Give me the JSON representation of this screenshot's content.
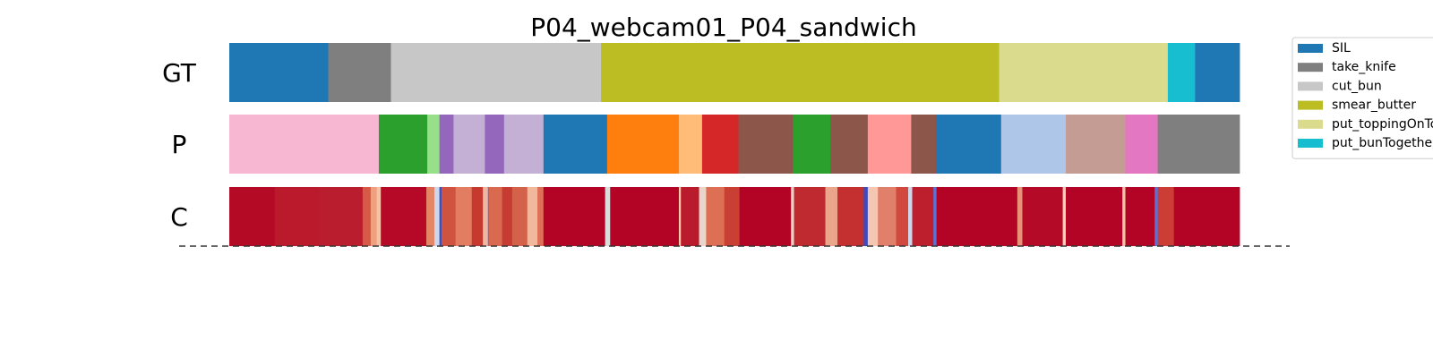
{
  "chart_data": {
    "type": "segmentation_timeline",
    "title": "P04_webcam01_P04_sandwich",
    "rows": [
      {
        "label": "GT",
        "segments": [
          {
            "start": 0.0,
            "end": 0.098,
            "color": "#1f77b4"
          },
          {
            "start": 0.098,
            "end": 0.16,
            "color": "#7f7f7f"
          },
          {
            "start": 0.16,
            "end": 0.368,
            "color": "#c7c7c7"
          },
          {
            "start": 0.368,
            "end": 0.762,
            "color": "#bcbd22"
          },
          {
            "start": 0.762,
            "end": 0.929,
            "color": "#dbdb8d"
          },
          {
            "start": 0.929,
            "end": 0.956,
            "color": "#17becf"
          },
          {
            "start": 0.956,
            "end": 1.0,
            "color": "#1f77b4"
          }
        ]
      },
      {
        "label": "P",
        "segments": [
          {
            "start": 0.0,
            "end": 0.148,
            "color": "#f7b6d2"
          },
          {
            "start": 0.148,
            "end": 0.196,
            "color": "#2ca02c"
          },
          {
            "start": 0.196,
            "end": 0.208,
            "color": "#98df8a"
          },
          {
            "start": 0.208,
            "end": 0.222,
            "color": "#9467bd"
          },
          {
            "start": 0.222,
            "end": 0.253,
            "color": "#c5b0d5"
          },
          {
            "start": 0.253,
            "end": 0.272,
            "color": "#9467bd"
          },
          {
            "start": 0.272,
            "end": 0.311,
            "color": "#c5b0d5"
          },
          {
            "start": 0.311,
            "end": 0.374,
            "color": "#1f77b4"
          },
          {
            "start": 0.374,
            "end": 0.445,
            "color": "#ff7f0e"
          },
          {
            "start": 0.445,
            "end": 0.468,
            "color": "#ffbb78"
          },
          {
            "start": 0.468,
            "end": 0.504,
            "color": "#d62728"
          },
          {
            "start": 0.504,
            "end": 0.558,
            "color": "#8c564b"
          },
          {
            "start": 0.558,
            "end": 0.595,
            "color": "#2ca02c"
          },
          {
            "start": 0.595,
            "end": 0.632,
            "color": "#8c564b"
          },
          {
            "start": 0.632,
            "end": 0.675,
            "color": "#ff9896"
          },
          {
            "start": 0.675,
            "end": 0.7,
            "color": "#8c564b"
          },
          {
            "start": 0.7,
            "end": 0.764,
            "color": "#1f77b4"
          },
          {
            "start": 0.764,
            "end": 0.828,
            "color": "#aec7e8"
          },
          {
            "start": 0.828,
            "end": 0.887,
            "color": "#c49c94"
          },
          {
            "start": 0.887,
            "end": 0.919,
            "color": "#e377c2"
          },
          {
            "start": 0.919,
            "end": 1.0,
            "color": "#7f7f7f"
          }
        ]
      },
      {
        "label": "C",
        "segments": [
          {
            "start": 0.0,
            "end": 0.045,
            "color": "#b50a25"
          },
          {
            "start": 0.045,
            "end": 0.088,
            "color": "#bb1a2c"
          },
          {
            "start": 0.088,
            "end": 0.132,
            "color": "#b91d2e"
          },
          {
            "start": 0.132,
            "end": 0.14,
            "color": "#d65a46"
          },
          {
            "start": 0.14,
            "end": 0.146,
            "color": "#f0a07f"
          },
          {
            "start": 0.146,
            "end": 0.15,
            "color": "#f5c2a8"
          },
          {
            "start": 0.15,
            "end": 0.195,
            "color": "#b50927"
          },
          {
            "start": 0.195,
            "end": 0.203,
            "color": "#e48566"
          },
          {
            "start": 0.203,
            "end": 0.208,
            "color": "#cdd6ea"
          },
          {
            "start": 0.208,
            "end": 0.21,
            "color": "#3b4cc0"
          },
          {
            "start": 0.21,
            "end": 0.224,
            "color": "#d0533f"
          },
          {
            "start": 0.224,
            "end": 0.24,
            "color": "#e27d62"
          },
          {
            "start": 0.24,
            "end": 0.251,
            "color": "#c5392f"
          },
          {
            "start": 0.251,
            "end": 0.256,
            "color": "#f0b7a0"
          },
          {
            "start": 0.256,
            "end": 0.257,
            "color": "#5a72d8"
          },
          {
            "start": 0.257,
            "end": 0.27,
            "color": "#d96a4f"
          },
          {
            "start": 0.27,
            "end": 0.28,
            "color": "#c63b32"
          },
          {
            "start": 0.28,
            "end": 0.295,
            "color": "#d4614a"
          },
          {
            "start": 0.295,
            "end": 0.305,
            "color": "#f1b89c"
          },
          {
            "start": 0.305,
            "end": 0.311,
            "color": "#dd7056"
          },
          {
            "start": 0.311,
            "end": 0.372,
            "color": "#b40426"
          },
          {
            "start": 0.372,
            "end": 0.377,
            "color": "#dcdcdc"
          },
          {
            "start": 0.377,
            "end": 0.445,
            "color": "#b40426"
          },
          {
            "start": 0.445,
            "end": 0.447,
            "color": "#f2c9a8"
          },
          {
            "start": 0.447,
            "end": 0.465,
            "color": "#b91a2c"
          },
          {
            "start": 0.465,
            "end": 0.472,
            "color": "#e8d6cc"
          },
          {
            "start": 0.472,
            "end": 0.49,
            "color": "#dd6f54"
          },
          {
            "start": 0.49,
            "end": 0.505,
            "color": "#c93f33"
          },
          {
            "start": 0.505,
            "end": 0.556,
            "color": "#b40426"
          },
          {
            "start": 0.556,
            "end": 0.559,
            "color": "#e8d0c4"
          },
          {
            "start": 0.559,
            "end": 0.59,
            "color": "#be2a30"
          },
          {
            "start": 0.59,
            "end": 0.602,
            "color": "#eaa58a"
          },
          {
            "start": 0.602,
            "end": 0.628,
            "color": "#c3302f"
          },
          {
            "start": 0.628,
            "end": 0.632,
            "color": "#3b4cc0"
          },
          {
            "start": 0.632,
            "end": 0.642,
            "color": "#f3c7b1"
          },
          {
            "start": 0.642,
            "end": 0.66,
            "color": "#e0806a"
          },
          {
            "start": 0.66,
            "end": 0.672,
            "color": "#d1493e"
          },
          {
            "start": 0.672,
            "end": 0.676,
            "color": "#cfd8ea"
          },
          {
            "start": 0.676,
            "end": 0.697,
            "color": "#bd1f2d"
          },
          {
            "start": 0.697,
            "end": 0.7,
            "color": "#5b73d8"
          },
          {
            "start": 0.7,
            "end": 0.78,
            "color": "#b40426"
          },
          {
            "start": 0.78,
            "end": 0.785,
            "color": "#e89277"
          },
          {
            "start": 0.785,
            "end": 0.825,
            "color": "#b50a27"
          },
          {
            "start": 0.825,
            "end": 0.828,
            "color": "#f5d2b5"
          },
          {
            "start": 0.828,
            "end": 0.884,
            "color": "#b40426"
          },
          {
            "start": 0.884,
            "end": 0.887,
            "color": "#f0c4a4"
          },
          {
            "start": 0.887,
            "end": 0.916,
            "color": "#b40426"
          },
          {
            "start": 0.916,
            "end": 0.919,
            "color": "#5a72d8"
          },
          {
            "start": 0.919,
            "end": 0.935,
            "color": "#cc3d36"
          },
          {
            "start": 0.935,
            "end": 1.0,
            "color": "#b40426"
          }
        ]
      }
    ],
    "legend": {
      "placement": "top-right",
      "entries": [
        {
          "label": "SIL",
          "color": "#1f77b4"
        },
        {
          "label": "take_knife",
          "color": "#7f7f7f"
        },
        {
          "label": "cut_bun",
          "color": "#c7c7c7"
        },
        {
          "label": "smear_butter",
          "color": "#bcbd22"
        },
        {
          "label": "put_toppingOnTop",
          "color": "#dbdb8d"
        },
        {
          "label": "put_bunTogether",
          "color": "#17becf"
        }
      ]
    },
    "grid": false
  }
}
